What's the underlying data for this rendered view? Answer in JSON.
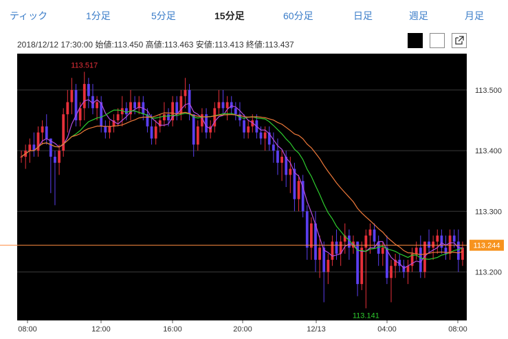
{
  "tabs": [
    {
      "label": "ティック",
      "active": false
    },
    {
      "label": "1分足",
      "active": false
    },
    {
      "label": "5分足",
      "active": false
    },
    {
      "label": "15分足",
      "active": true
    },
    {
      "label": "60分足",
      "active": false
    },
    {
      "label": "日足",
      "active": false
    },
    {
      "label": "週足",
      "active": false
    },
    {
      "label": "月足",
      "active": false
    }
  ],
  "ohlc_line": "2018/12/12 17:30:00 始値:113.450 高値:113.463 安値:113.413 終値:113.437",
  "toolbar": {
    "popout_icon": "external-link-icon"
  },
  "colors": {
    "background": "#000000",
    "up": "#e8303a",
    "down": "#5b3ff0",
    "ma_short": "#b44ee0",
    "ma_mid": "#2ecc2e",
    "ma_long": "#f07a3a",
    "price_line": "#ff8c40",
    "price_label_bg": "#f7931e"
  },
  "chart_data": {
    "type": "candlestick",
    "x_tick_labels": [
      "08:00",
      "12:00",
      "16:00",
      "20:00",
      "12/13",
      "04:00",
      "08:00"
    ],
    "y_tick_labels": [
      "113.200",
      "113.300",
      "113.400",
      "113.500"
    ],
    "ylim": [
      113.12,
      113.56
    ],
    "grid": true,
    "current_price": "113.244",
    "high_marker": "113.517",
    "low_marker": "113.141",
    "candles": [
      [
        113.39,
        113.4,
        113.38,
        113.39
      ],
      [
        113.39,
        113.41,
        113.37,
        113.4
      ],
      [
        113.4,
        113.42,
        113.38,
        113.41
      ],
      [
        113.41,
        113.43,
        113.39,
        113.4
      ],
      [
        113.4,
        113.44,
        113.39,
        113.43
      ],
      [
        113.43,
        113.45,
        113.41,
        113.44
      ],
      [
        113.44,
        113.46,
        113.41,
        113.42
      ],
      [
        113.42,
        113.42,
        113.33,
        113.39
      ],
      [
        113.39,
        113.4,
        113.31,
        113.38
      ],
      [
        113.38,
        113.41,
        113.36,
        113.4
      ],
      [
        113.4,
        113.47,
        113.39,
        113.46
      ],
      [
        113.46,
        113.5,
        113.43,
        113.48
      ],
      [
        113.48,
        113.52,
        113.46,
        113.5
      ],
      [
        113.5,
        113.51,
        113.44,
        113.45
      ],
      [
        113.45,
        113.48,
        113.44,
        113.47
      ],
      [
        113.47,
        113.53,
        113.45,
        113.51
      ],
      [
        113.51,
        113.52,
        113.47,
        113.49
      ],
      [
        113.49,
        113.51,
        113.46,
        113.47
      ],
      [
        113.47,
        113.49,
        113.45,
        113.48
      ],
      [
        113.48,
        113.49,
        113.43,
        113.44
      ],
      [
        113.44,
        113.45,
        113.42,
        113.43
      ],
      [
        113.43,
        113.45,
        113.42,
        113.44
      ],
      [
        113.44,
        113.46,
        113.43,
        113.45
      ],
      [
        113.45,
        113.47,
        113.44,
        113.46
      ],
      [
        113.46,
        113.49,
        113.44,
        113.47
      ],
      [
        113.47,
        113.48,
        113.45,
        113.46
      ],
      [
        113.46,
        113.5,
        113.45,
        113.48
      ],
      [
        113.48,
        113.49,
        113.46,
        113.47
      ],
      [
        113.47,
        113.49,
        113.46,
        113.48
      ],
      [
        113.48,
        113.49,
        113.45,
        113.46
      ],
      [
        113.46,
        113.47,
        113.43,
        113.44
      ],
      [
        113.44,
        113.46,
        113.41,
        113.42
      ],
      [
        113.42,
        113.45,
        113.41,
        113.44
      ],
      [
        113.44,
        113.46,
        113.43,
        113.45
      ],
      [
        113.45,
        113.48,
        113.44,
        113.46
      ],
      [
        113.46,
        113.47,
        113.44,
        113.45
      ],
      [
        113.45,
        113.49,
        113.44,
        113.48
      ],
      [
        113.48,
        113.49,
        113.45,
        113.46
      ],
      [
        113.46,
        113.5,
        113.45,
        113.49
      ],
      [
        113.49,
        113.52,
        113.47,
        113.5
      ],
      [
        113.5,
        113.51,
        113.45,
        113.46
      ],
      [
        113.46,
        113.46,
        113.39,
        113.41
      ],
      [
        113.41,
        113.45,
        113.4,
        113.44
      ],
      [
        113.44,
        113.47,
        113.43,
        113.46
      ],
      [
        113.46,
        113.47,
        113.42,
        113.43
      ],
      [
        113.43,
        113.45,
        113.42,
        113.44
      ],
      [
        113.44,
        113.48,
        113.43,
        113.47
      ],
      [
        113.47,
        113.5,
        113.46,
        113.48
      ],
      [
        113.48,
        113.5,
        113.46,
        113.47
      ],
      [
        113.47,
        113.49,
        113.45,
        113.48
      ],
      [
        113.48,
        113.49,
        113.46,
        113.47
      ],
      [
        113.47,
        113.48,
        113.45,
        113.46
      ],
      [
        113.46,
        113.48,
        113.44,
        113.45
      ],
      [
        113.45,
        113.46,
        113.42,
        113.43
      ],
      [
        113.43,
        113.45,
        113.42,
        113.44
      ],
      [
        113.44,
        113.46,
        113.43,
        113.45
      ],
      [
        113.45,
        113.46,
        113.42,
        113.43
      ],
      [
        113.43,
        113.44,
        113.41,
        113.42
      ],
      [
        113.42,
        113.44,
        113.4,
        113.43
      ],
      [
        113.43,
        113.44,
        113.4,
        113.41
      ],
      [
        113.41,
        113.43,
        113.38,
        113.4
      ],
      [
        113.4,
        113.42,
        113.36,
        113.38
      ],
      [
        113.38,
        113.4,
        113.35,
        113.39
      ],
      [
        113.39,
        113.4,
        113.34,
        113.36
      ],
      [
        113.36,
        113.39,
        113.33,
        113.37
      ],
      [
        113.37,
        113.38,
        113.3,
        113.32
      ],
      [
        113.32,
        113.36,
        113.3,
        113.35
      ],
      [
        113.35,
        113.36,
        113.29,
        113.3
      ],
      [
        113.3,
        113.31,
        113.22,
        113.24
      ],
      [
        113.24,
        113.29,
        113.22,
        113.28
      ],
      [
        113.28,
        113.3,
        113.2,
        113.22
      ],
      [
        113.22,
        113.26,
        113.19,
        113.24
      ],
      [
        113.24,
        113.25,
        113.15,
        113.2
      ],
      [
        113.2,
        113.23,
        113.18,
        113.22
      ],
      [
        113.22,
        113.26,
        113.21,
        113.25
      ],
      [
        113.25,
        113.27,
        113.22,
        113.23
      ],
      [
        113.23,
        113.26,
        113.21,
        113.25
      ],
      [
        113.25,
        113.28,
        113.23,
        113.26
      ],
      [
        113.26,
        113.27,
        113.22,
        113.24
      ],
      [
        113.24,
        113.26,
        113.23,
        113.25
      ],
      [
        113.25,
        113.25,
        113.16,
        113.18
      ],
      [
        113.18,
        113.25,
        113.17,
        113.24
      ],
      [
        113.24,
        113.27,
        113.14,
        113.26
      ],
      [
        113.26,
        113.28,
        113.23,
        113.27
      ],
      [
        113.27,
        113.28,
        113.24,
        113.25
      ],
      [
        113.25,
        113.26,
        113.21,
        113.23
      ],
      [
        113.23,
        113.25,
        113.21,
        113.24
      ],
      [
        113.24,
        113.26,
        113.18,
        113.19
      ],
      [
        113.19,
        113.22,
        113.15,
        113.21
      ],
      [
        113.21,
        113.23,
        113.19,
        113.22
      ],
      [
        113.22,
        113.23,
        113.2,
        113.21
      ],
      [
        113.21,
        113.22,
        113.19,
        113.2
      ],
      [
        113.2,
        113.22,
        113.18,
        113.21
      ],
      [
        113.21,
        113.24,
        113.2,
        113.23
      ],
      [
        113.23,
        113.25,
        113.22,
        113.24
      ],
      [
        113.24,
        113.26,
        113.19,
        113.2
      ],
      [
        113.2,
        113.25,
        113.19,
        113.25
      ],
      [
        113.25,
        113.27,
        113.23,
        113.24
      ],
      [
        113.24,
        113.26,
        113.22,
        113.25
      ],
      [
        113.25,
        113.27,
        113.23,
        113.26
      ],
      [
        113.26,
        113.27,
        113.23,
        113.24
      ],
      [
        113.24,
        113.26,
        113.22,
        113.23
      ],
      [
        113.23,
        113.27,
        113.22,
        113.26
      ],
      [
        113.26,
        113.27,
        113.24,
        113.25
      ],
      [
        113.25,
        113.27,
        113.2,
        113.22
      ],
      [
        113.22,
        113.25,
        113.21,
        113.24
      ]
    ]
  }
}
